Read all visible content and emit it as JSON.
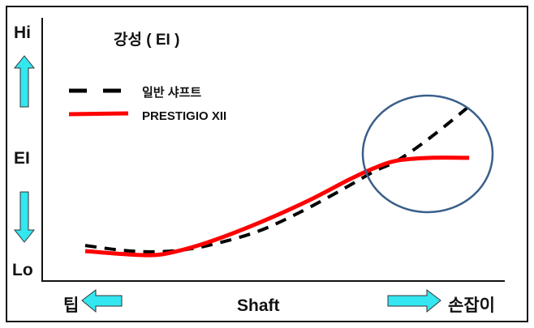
{
  "chart_data": {
    "type": "line",
    "title": "강성 ( EI )",
    "ylabel": "EI",
    "y_ticks": {
      "high": "Hi",
      "low": "Lo"
    },
    "xlabel": "Shaft",
    "x_ends": {
      "left": "팁",
      "right": "손잡이"
    },
    "xlim": [
      0,
      10
    ],
    "ylim": [
      0,
      10
    ],
    "grid": false,
    "legend_placement": "top-left",
    "series": [
      {
        "name": "일반 샤프트",
        "style": "dashed",
        "color": "#000000",
        "x": [
          0.93,
          1.72,
          2.42,
          3.12,
          3.82,
          4.7,
          5.58,
          6.46,
          7.16,
          7.68,
          8.39,
          9.26
        ],
        "y": [
          1.35,
          1.17,
          1.11,
          1.2,
          1.45,
          1.91,
          2.62,
          3.45,
          4.15,
          4.58,
          5.45,
          6.68
        ]
      },
      {
        "name": "PRESTIGIO XII",
        "style": "solid",
        "color": "#ff0000",
        "x": [
          0.93,
          1.54,
          2.33,
          2.86,
          3.65,
          4.7,
          5.75,
          6.63,
          7.16,
          7.68,
          8.39,
          9.23
        ],
        "y": [
          1.14,
          1.05,
          0.98,
          1.11,
          1.51,
          2.22,
          3.05,
          3.85,
          4.28,
          4.58,
          4.68,
          4.68
        ]
      }
    ],
    "annotation": {
      "shape": "circle",
      "color": "#3a5f8a",
      "highlights": "butt section"
    },
    "arrow_color": "#33e6f0"
  }
}
